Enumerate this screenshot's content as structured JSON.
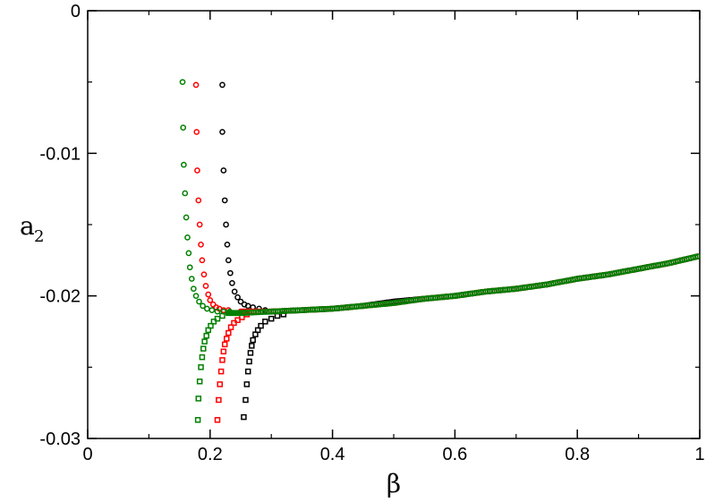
{
  "chart_data": {
    "type": "scatter",
    "xlabel": "β",
    "ylabel": "a",
    "ylabel_subscript": "2",
    "xlim": [
      0,
      1
    ],
    "ylim": [
      -0.03,
      0
    ],
    "xticks": [
      0,
      0.2,
      0.4,
      0.6,
      0.8,
      1
    ],
    "xtick_labels": [
      "0",
      "0.2",
      "0.4",
      "0.6",
      "0.8",
      "1"
    ],
    "yticks": [
      -0.03,
      -0.02,
      -0.01,
      0
    ],
    "ytick_labels": [
      "-0.03",
      "-0.02",
      "-0.01",
      "0"
    ],
    "grid": false,
    "legend": "none",
    "series": [
      {
        "color": "#000000",
        "marker": "circle",
        "x": [
          0.22,
          0.22,
          0.222,
          0.224,
          0.226,
          0.228,
          0.23,
          0.233,
          0.236,
          0.24,
          0.245,
          0.25,
          0.256,
          0.262,
          0.27,
          0.28,
          0.29
        ],
        "y": [
          -0.0052,
          -0.0085,
          -0.0112,
          -0.0133,
          -0.015,
          -0.0164,
          -0.0175,
          -0.0184,
          -0.0191,
          -0.0197,
          -0.0201,
          -0.0204,
          -0.0206,
          -0.0207,
          -0.0208,
          -0.0209,
          -0.021
        ]
      },
      {
        "color": "#000000",
        "marker": "square",
        "x": [
          0.255,
          0.258,
          0.26,
          0.262,
          0.264,
          0.266,
          0.268,
          0.27,
          0.274,
          0.278,
          0.283,
          0.29,
          0.3,
          0.31,
          0.32
        ],
        "y": [
          -0.0285,
          -0.0273,
          -0.0262,
          -0.0253,
          -0.0246,
          -0.024,
          -0.0235,
          -0.0231,
          -0.0227,
          -0.0224,
          -0.0221,
          -0.0218,
          -0.0216,
          -0.0214,
          -0.0213
        ]
      },
      {
        "color": "#ff0000",
        "marker": "circle",
        "x": [
          0.177,
          0.178,
          0.179,
          0.181,
          0.183,
          0.185,
          0.187,
          0.19,
          0.193,
          0.197,
          0.2,
          0.205,
          0.21,
          0.215,
          0.222,
          0.23
        ],
        "y": [
          -0.0052,
          -0.0085,
          -0.0112,
          -0.0133,
          -0.015,
          -0.0164,
          -0.0175,
          -0.0185,
          -0.0193,
          -0.0199,
          -0.0203,
          -0.0206,
          -0.0208,
          -0.0209,
          -0.021,
          -0.021
        ]
      },
      {
        "color": "#ff0000",
        "marker": "square",
        "x": [
          0.212,
          0.214,
          0.216,
          0.218,
          0.22,
          0.222,
          0.224,
          0.227,
          0.23,
          0.234,
          0.239,
          0.245,
          0.252,
          0.26
        ],
        "y": [
          -0.0287,
          -0.0273,
          -0.0262,
          -0.0253,
          -0.0245,
          -0.0239,
          -0.0234,
          -0.023,
          -0.0226,
          -0.0222,
          -0.0219,
          -0.0217,
          -0.0215,
          -0.0213
        ]
      },
      {
        "color": "#008000",
        "marker": "circle",
        "x": [
          0.155,
          0.156,
          0.157,
          0.159,
          0.161,
          0.163,
          0.165,
          0.167,
          0.17,
          0.173,
          0.177,
          0.182,
          0.188,
          0.195,
          0.203,
          0.212,
          0.222,
          0.232
        ],
        "y": [
          -0.005,
          -0.0082,
          -0.0108,
          -0.0128,
          -0.0145,
          -0.0159,
          -0.017,
          -0.018,
          -0.0188,
          -0.0195,
          -0.02,
          -0.0204,
          -0.0207,
          -0.0209,
          -0.021,
          -0.0211,
          -0.0211,
          -0.0211
        ]
      },
      {
        "color": "#008000",
        "marker": "square",
        "x": [
          0.18,
          0.181,
          0.183,
          0.185,
          0.187,
          0.189,
          0.191,
          0.194,
          0.197,
          0.201,
          0.206,
          0.212,
          0.22,
          0.23
        ],
        "y": [
          -0.0287,
          -0.0272,
          -0.026,
          -0.025,
          -0.0243,
          -0.0237,
          -0.0232,
          -0.0228,
          -0.0224,
          -0.0221,
          -0.0218,
          -0.0216,
          -0.0214,
          -0.0212
        ]
      },
      {
        "color": "#000000",
        "marker": "dense",
        "x": [
          0.3,
          0.35,
          0.4,
          0.45,
          0.5,
          0.55,
          0.6,
          0.65,
          0.7,
          0.75,
          0.8,
          0.85,
          0.9,
          0.95,
          1.0
        ],
        "y": [
          -0.0211,
          -0.021,
          -0.0209,
          -0.0207,
          -0.0204,
          -0.0202,
          -0.02,
          -0.0197,
          -0.0195,
          -0.0192,
          -0.0188,
          -0.0185,
          -0.0181,
          -0.0177,
          -0.0172
        ]
      },
      {
        "color": "#ff0000",
        "marker": "dense",
        "x": [
          0.25,
          0.3,
          0.35,
          0.4,
          0.45,
          0.5,
          0.55,
          0.6,
          0.65,
          0.7,
          0.75,
          0.8,
          0.85,
          0.9,
          0.95,
          1.0
        ],
        "y": [
          -0.0211,
          -0.0211,
          -0.021,
          -0.0209,
          -0.0207,
          -0.0205,
          -0.0202,
          -0.02,
          -0.0197,
          -0.0195,
          -0.0192,
          -0.0188,
          -0.0185,
          -0.0181,
          -0.0177,
          -0.0172
        ]
      },
      {
        "color": "#008000",
        "marker": "dense",
        "x": [
          0.23,
          0.25,
          0.3,
          0.35,
          0.4,
          0.45,
          0.5,
          0.55,
          0.6,
          0.65,
          0.7,
          0.75,
          0.8,
          0.85,
          0.9,
          0.95,
          1.0
        ],
        "y": [
          -0.0212,
          -0.0212,
          -0.0211,
          -0.021,
          -0.0209,
          -0.0207,
          -0.0205,
          -0.0202,
          -0.02,
          -0.0197,
          -0.0195,
          -0.0192,
          -0.0188,
          -0.0185,
          -0.0181,
          -0.0177,
          -0.0172
        ]
      }
    ]
  }
}
